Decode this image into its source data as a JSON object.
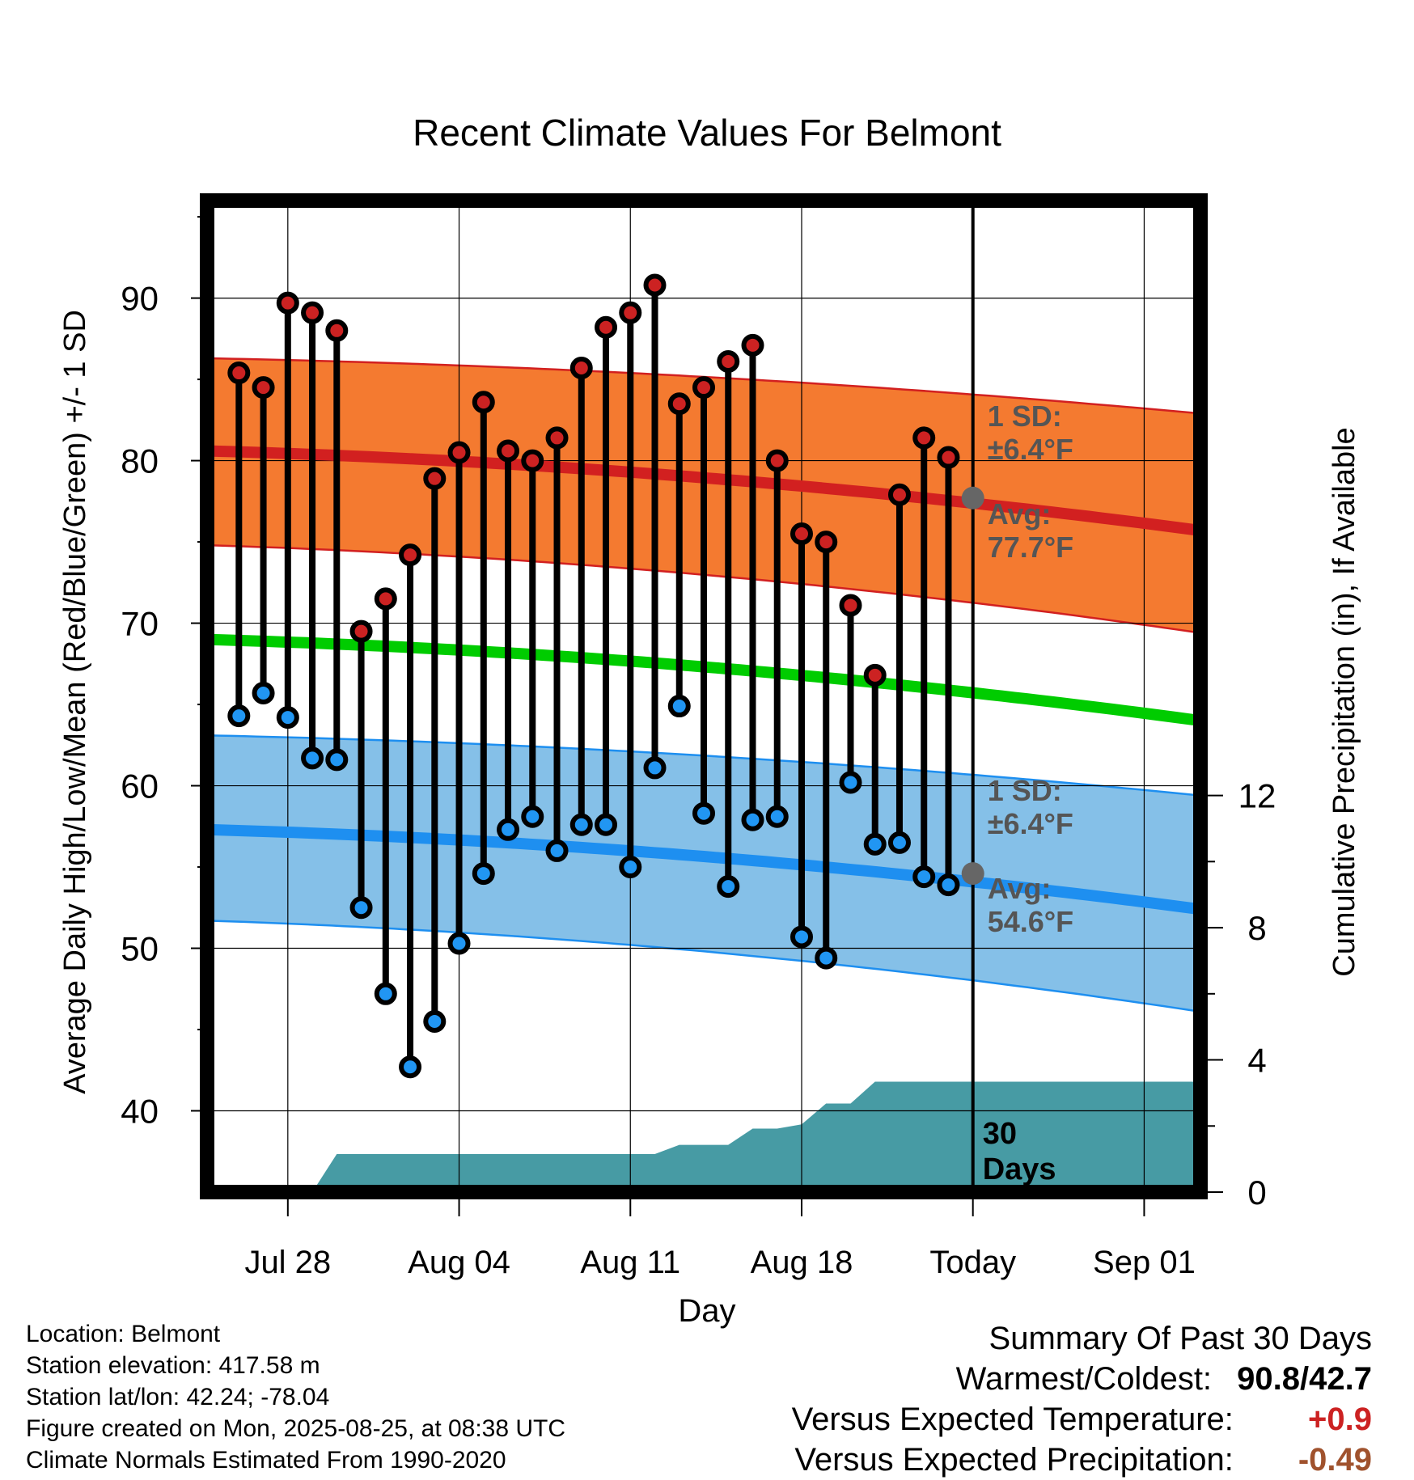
{
  "chart_data": {
    "type": "line",
    "title": "Recent Climate Values For Belmont",
    "xlabel": "Day",
    "ylabel": "Average Daily High/Low/Mean (Red/Blue/Green) +/- 1 SD",
    "y2label": "Cumulative Precipitation (in), If Available",
    "ylim": [
      35,
      96
    ],
    "y2lim": [
      0,
      30
    ],
    "x_ticks": [
      {
        "day": 3,
        "label": "Jul 28"
      },
      {
        "day": 10,
        "label": "Aug 04"
      },
      {
        "day": 17,
        "label": "Aug 11"
      },
      {
        "day": 24,
        "label": "Aug 18"
      },
      {
        "day": 31,
        "label": "Today"
      },
      {
        "day": 38,
        "label": "Sep 01"
      }
    ],
    "xlim": [
      -0.3,
      40.3
    ],
    "y_ticks": [
      40,
      50,
      60,
      70,
      80,
      90
    ],
    "y2_ticks": [
      0,
      4,
      8,
      12
    ],
    "highs": [
      85.4,
      84.5,
      89.7,
      89.1,
      88.0,
      69.5,
      71.5,
      74.2,
      78.9,
      80.5,
      83.6,
      80.6,
      80.0,
      81.4,
      85.7,
      88.2,
      89.1,
      90.8,
      83.5,
      84.5,
      86.1,
      87.1,
      80.0,
      75.5,
      75.0,
      71.1,
      66.8,
      77.9,
      81.4,
      80.2
    ],
    "lows": [
      64.3,
      65.7,
      64.2,
      61.7,
      61.6,
      52.5,
      47.2,
      42.7,
      45.5,
      50.3,
      54.6,
      57.3,
      58.1,
      56.0,
      57.6,
      57.6,
      55.0,
      61.1,
      64.9,
      58.3,
      53.8,
      57.9,
      58.1,
      50.7,
      49.4,
      60.2,
      56.4,
      56.5,
      54.4,
      53.9
    ],
    "normal_high": {
      "start": 80.6,
      "end": 75.7
    },
    "normal_high_sd_band": {
      "upper_start": 86.3,
      "upper_end": 82.9,
      "lower_start": 74.8,
      "lower_end": 69.4
    },
    "normal_mean": {
      "start": 69.0,
      "end": 64.0
    },
    "normal_low": {
      "start": 57.3,
      "end": 52.4
    },
    "normal_low_sd_band": {
      "upper_start": 63.1,
      "upper_end": 59.4,
      "lower_start": 51.7,
      "lower_end": 46.1
    },
    "precip_steps": [
      {
        "day": 4.0,
        "value": 0.0
      },
      {
        "day": 5.0,
        "value": 1.15
      },
      {
        "day": 16.0,
        "value": 1.15
      },
      {
        "day": 17.0,
        "value": 1.15
      },
      {
        "day": 18.0,
        "value": 1.15
      },
      {
        "day": 19.0,
        "value": 1.43
      },
      {
        "day": 20.0,
        "value": 1.43
      },
      {
        "day": 21.0,
        "value": 1.43
      },
      {
        "day": 22.0,
        "value": 1.92
      },
      {
        "day": 23.0,
        "value": 1.92
      },
      {
        "day": 24.0,
        "value": 2.05
      },
      {
        "day": 25.0,
        "value": 2.68
      },
      {
        "day": 26.0,
        "value": 2.68
      },
      {
        "day": 27.0,
        "value": 3.34
      },
      {
        "day": 28.0,
        "value": 3.34
      },
      {
        "day": 40.3,
        "value": 3.34
      }
    ],
    "today_marker": {
      "day": 31,
      "label_days": "30",
      "label_unit": "Days"
    },
    "annotations": {
      "high_sd_title": "1 SD:",
      "high_sd_value": "±6.4°F",
      "high_avg_title": "Avg:",
      "high_avg_value": "77.7°F",
      "low_sd_title": "1 SD:",
      "low_sd_value": "±6.4°F",
      "low_avg_title": "Avg:",
      "low_avg_value": "54.6°F",
      "high_avg_point": 77.7,
      "low_avg_point": 54.6
    },
    "colors": {
      "high_band": "#f47a30",
      "high_line": "#d22020",
      "mean_line": "#00cc00",
      "low_band": "#85c0e8",
      "low_line": "#1e8ff0",
      "high_dot": "#cc2222",
      "low_dot": "#2196f3",
      "precip": "#479ba4",
      "annotation_text": "#555555"
    }
  },
  "footer": {
    "location": "Location: Belmont",
    "elevation": "Station elevation: 417.58 m",
    "latlon": "Station lat/lon: 42.24; -78.04",
    "created": "Figure created on Mon, 2025-08-25, at 08:38 UTC",
    "normals": "Climate Normals Estimated From 1990-2020"
  },
  "summary": {
    "title": "Summary Of Past 30 Days",
    "warm_cold_label": "Warmest/Coldest:",
    "warm_cold_value": "90.8/42.7",
    "temp_label": "Versus Expected Temperature:",
    "temp_value": "+0.9",
    "temp_color": "#cc2222",
    "precip_label": "Versus Expected Precipitation:",
    "precip_value": "-0.49",
    "precip_color": "#a0522d"
  }
}
